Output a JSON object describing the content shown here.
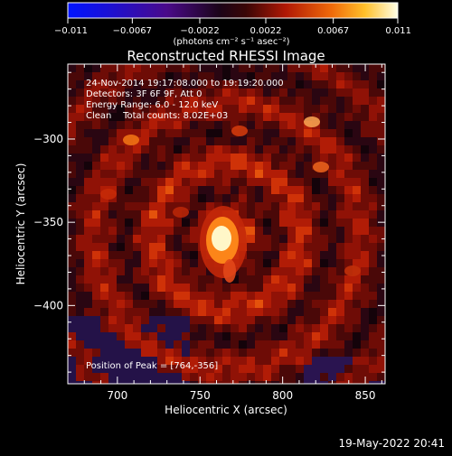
{
  "colorbar": {
    "ticks": [
      {
        "value": -0.011,
        "label": "−0.011"
      },
      {
        "value": -0.0067,
        "label": "−0.0067"
      },
      {
        "value": -0.0022,
        "label": "−0.0022"
      },
      {
        "value": 0.0022,
        "label": "0.0022"
      },
      {
        "value": 0.0067,
        "label": "0.0067"
      },
      {
        "value": 0.011,
        "label": "0.011"
      }
    ],
    "range": [
      -0.011,
      0.011
    ],
    "units_label": "(photons cm⁻² s⁻¹ asec⁻²)"
  },
  "chart_data": {
    "type": "heatmap",
    "title": "Reconstructed RHESSI Image",
    "xlabel": "Heliocentric X (arcsec)",
    "ylabel": "Heliocentric Y (arcsec)",
    "xlim": [
      670,
      862
    ],
    "ylim": [
      -447,
      -255
    ],
    "xticks": [
      700,
      750,
      800,
      850
    ],
    "yticks": [
      -300,
      -350,
      -400
    ],
    "annotations": [
      "24-Nov-2014 19:17:08.000 to 19:19:20.000",
      "Detectors: 3F 6F 9F, Att 0",
      "Energy Range: 6.0 - 12.0 keV",
      "Clean    Total counts: 8.02E+03"
    ],
    "peak_label": "Position of Peak = [764,-356]",
    "peak": [
      764,
      -356
    ]
  },
  "footer": {
    "timestamp": "19-May-2022 20:41"
  }
}
